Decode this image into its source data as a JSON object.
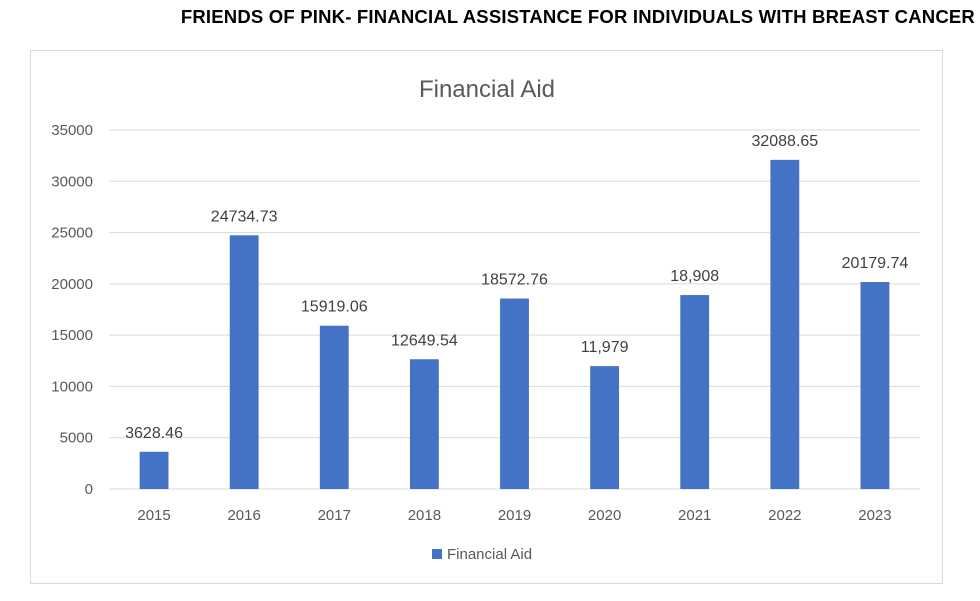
{
  "page": {
    "title": "FRIENDS OF PINK- FINANCIAL ASSISTANCE FOR INDIVIDUALS WITH BREAST CANCER"
  },
  "chart_data": {
    "type": "bar",
    "title": "Financial Aid",
    "xlabel": "",
    "ylabel": "",
    "categories": [
      "2015",
      "2016",
      "2017",
      "2018",
      "2019",
      "2020",
      "2021",
      "2022",
      "2023"
    ],
    "series": [
      {
        "name": "Financial Aid",
        "color": "#4472c4",
        "values": [
          3628.46,
          24734.73,
          15919.06,
          12649.54,
          18572.76,
          11979,
          18908,
          32088.65,
          20179.74
        ],
        "labels": [
          "3628.46",
          "24734.73",
          "15919.06",
          "12649.54",
          "18572.76",
          "11,979",
          "18,908",
          "32088.65",
          "20179.74"
        ]
      }
    ],
    "ylim": [
      0,
      35000
    ],
    "yticks": [
      0,
      5000,
      10000,
      15000,
      20000,
      25000,
      30000,
      35000
    ],
    "grid": true,
    "legend_position": "bottom"
  }
}
